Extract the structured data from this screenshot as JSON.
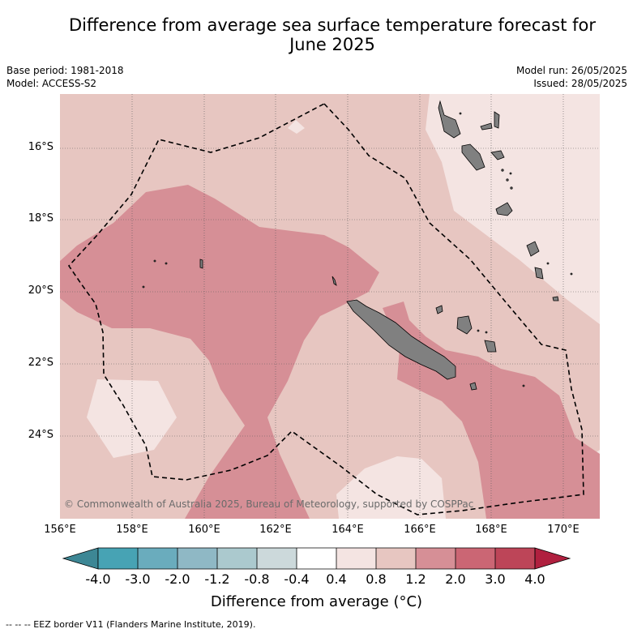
{
  "header": {
    "title_line1": "Difference from average sea surface temperature forecast for",
    "title_line2": "June 2025",
    "base_period": "Base period: 1981-2018",
    "model": "Model: ACCESS-S2",
    "model_run": "Model run: 26/05/2025",
    "issued": "Issued: 28/05/2025"
  },
  "map": {
    "lat_labels": [
      "16°S",
      "18°S",
      "20°S",
      "22°S",
      "24°S"
    ],
    "lon_labels": [
      "156°E",
      "158°E",
      "160°E",
      "162°E",
      "164°E",
      "166°E",
      "168°E",
      "170°E"
    ],
    "copyright": "© Commonwealth of Australia 2025, Bureau of Meteorology, supported by COSPPac",
    "colors": {
      "anomaly_0_4_to_0_8": "#f4e4e2",
      "anomaly_0_8_to_1_2": "#e7c6c1",
      "anomaly_1_2_to_2_0": "#d68f96",
      "land": "#808080",
      "eez_border": "#000000"
    }
  },
  "colorbar": {
    "ticks": [
      "-4.0",
      "-3.0",
      "-2.0",
      "-1.2",
      "-0.8",
      "-0.4",
      "0.4",
      "0.8",
      "1.2",
      "2.0",
      "3.0",
      "4.0"
    ],
    "colors": [
      "#47a3b4",
      "#6aacbd",
      "#8fb8c5",
      "#abc9ce",
      "#ccd9db",
      "#ffffff",
      "#f4e4e2",
      "#e7c6c1",
      "#d68f96",
      "#cb6674",
      "#bd4558"
    ],
    "under_color": "#3d8795",
    "over_color": "#b0203f",
    "label": "Difference from average (°C)"
  },
  "legend": {
    "eez_label": "-- -- -- EEZ border V11 (Flanders Marine Institute, 2019)."
  }
}
